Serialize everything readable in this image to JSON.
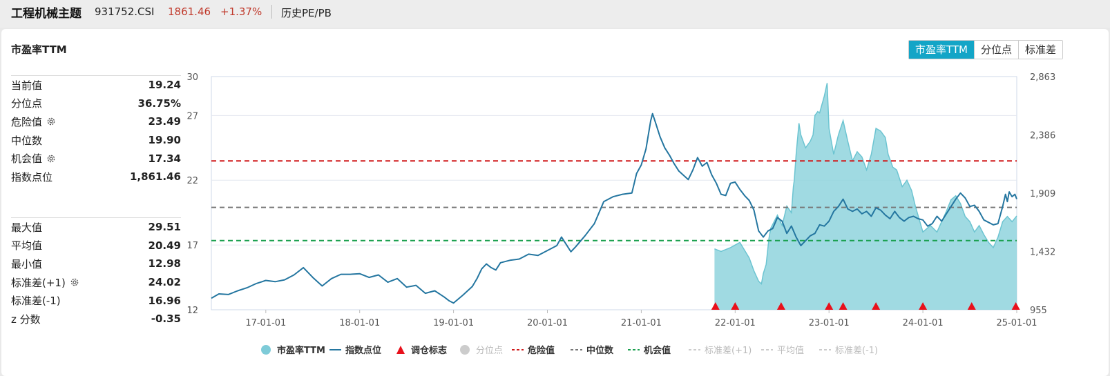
{
  "header": {
    "index_name": "工程机械主题",
    "code": "931752.CSI",
    "price": "1861.46",
    "change": "+1.37%",
    "history_link": "历史PE/PB"
  },
  "panel": {
    "title": "市盈率TTM",
    "tabs": [
      {
        "label": "市盈率TTM",
        "active": true
      },
      {
        "label": "分位点",
        "active": false
      },
      {
        "label": "标准差",
        "active": false
      }
    ]
  },
  "stats_top": [
    {
      "label": "当前值",
      "value": "19.24",
      "gear": false
    },
    {
      "label": "分位点",
      "value": "36.75%",
      "gear": false
    },
    {
      "label": "危险值",
      "value": "23.49",
      "gear": true
    },
    {
      "label": "中位数",
      "value": "19.90",
      "gear": false
    },
    {
      "label": "机会值",
      "value": "17.34",
      "gear": true
    },
    {
      "label": "指数点位",
      "value": "1,861.46",
      "gear": false
    }
  ],
  "stats_bottom": [
    {
      "label": "最大值",
      "value": "29.51",
      "gear": false
    },
    {
      "label": "平均值",
      "value": "20.49",
      "gear": false
    },
    {
      "label": "最小值",
      "value": "12.98",
      "gear": false
    },
    {
      "label": "标准差(+1)",
      "value": "24.02",
      "gear": true
    },
    {
      "label": "标准差(-1)",
      "value": "16.96",
      "gear": false
    },
    {
      "label": "z 分数",
      "value": "-0.35",
      "gear": false
    }
  ],
  "chart_data": {
    "type": "area",
    "colors": {
      "pe_fill": "#8fd3dd",
      "pe_line": "#6cc4d1",
      "index_line": "#2476a0",
      "danger": "#d0191a",
      "median": "#777777",
      "opportunity": "#1aa04f",
      "marker": "#e8101b"
    },
    "left_axis": {
      "ticks": [
        "30",
        "27",
        "22",
        "17",
        "12"
      ],
      "range": [
        12,
        30
      ]
    },
    "right_axis": {
      "ticks": [
        "2,863",
        "2,386",
        "1,909",
        "1,432",
        "955"
      ],
      "range": [
        955,
        2863
      ]
    },
    "x_ticks": [
      "17-01-01",
      "18-01-01",
      "19-01-01",
      "20-01-01",
      "21-01-01",
      "22-01-01",
      "23-01-01",
      "24-01-01",
      "25-01-01"
    ],
    "x_range": [
      2016.42,
      2025.0
    ],
    "reference_lines": {
      "danger": 23.49,
      "median": 19.9,
      "opportunity": 17.34
    },
    "rebalance_markers": [
      2021.79,
      2022.0,
      2022.49,
      2023.0,
      2023.15,
      2023.5,
      2024.0,
      2024.52,
      2024.99
    ],
    "pe_series": [
      [
        2021.78,
        16.7
      ],
      [
        2021.85,
        16.5
      ],
      [
        2021.95,
        16.8
      ],
      [
        2022.05,
        17.2
      ],
      [
        2022.1,
        16.6
      ],
      [
        2022.15,
        16.0
      ],
      [
        2022.2,
        15.0
      ],
      [
        2022.25,
        14.2
      ],
      [
        2022.28,
        14.0
      ],
      [
        2022.3,
        14.8
      ],
      [
        2022.33,
        15.5
      ],
      [
        2022.36,
        17.5
      ],
      [
        2022.38,
        18.3
      ],
      [
        2022.45,
        19.3
      ],
      [
        2022.5,
        18.5
      ],
      [
        2022.55,
        20.0
      ],
      [
        2022.6,
        19.5
      ],
      [
        2022.62,
        21.5
      ],
      [
        2022.63,
        22.0
      ],
      [
        2022.65,
        24.0
      ],
      [
        2022.68,
        26.4
      ],
      [
        2022.7,
        25.5
      ],
      [
        2022.75,
        24.5
      ],
      [
        2022.8,
        25.0
      ],
      [
        2022.83,
        25.5
      ],
      [
        2022.85,
        27.0
      ],
      [
        2022.88,
        27.3
      ],
      [
        2022.9,
        27.2
      ],
      [
        2022.95,
        28.5
      ],
      [
        2022.98,
        29.5
      ],
      [
        2023.0,
        26.0
      ],
      [
        2023.05,
        24.0
      ],
      [
        2023.1,
        25.5
      ],
      [
        2023.15,
        26.6
      ],
      [
        2023.2,
        25.0
      ],
      [
        2023.25,
        23.5
      ],
      [
        2023.3,
        24.2
      ],
      [
        2023.35,
        23.8
      ],
      [
        2023.4,
        22.8
      ],
      [
        2023.45,
        24.0
      ],
      [
        2023.5,
        26.0
      ],
      [
        2023.55,
        25.8
      ],
      [
        2023.6,
        25.3
      ],
      [
        2023.63,
        24.0
      ],
      [
        2023.68,
        23.0
      ],
      [
        2023.72,
        22.8
      ],
      [
        2023.78,
        21.5
      ],
      [
        2023.83,
        22.0
      ],
      [
        2023.88,
        21.2
      ],
      [
        2023.92,
        20.0
      ],
      [
        2023.96,
        19.0
      ],
      [
        2024.0,
        18.0
      ],
      [
        2024.08,
        18.5
      ],
      [
        2024.15,
        18.0
      ],
      [
        2024.2,
        18.8
      ],
      [
        2024.25,
        19.6
      ],
      [
        2024.3,
        20.5
      ],
      [
        2024.35,
        20.8
      ],
      [
        2024.4,
        20.2
      ],
      [
        2024.45,
        19.2
      ],
      [
        2024.5,
        18.8
      ],
      [
        2024.55,
        18.0
      ],
      [
        2024.6,
        18.5
      ],
      [
        2024.65,
        17.8
      ],
      [
        2024.7,
        17.2
      ],
      [
        2024.75,
        16.8
      ],
      [
        2024.8,
        17.6
      ],
      [
        2024.85,
        18.8
      ],
      [
        2024.9,
        19.2
      ],
      [
        2024.95,
        18.8
      ],
      [
        2025.0,
        19.24
      ]
    ],
    "index_series": [
      [
        2016.42,
        1050
      ],
      [
        2016.5,
        1085
      ],
      [
        2016.6,
        1080
      ],
      [
        2016.7,
        1110
      ],
      [
        2016.8,
        1135
      ],
      [
        2016.9,
        1170
      ],
      [
        2017.0,
        1195
      ],
      [
        2017.1,
        1185
      ],
      [
        2017.2,
        1200
      ],
      [
        2017.3,
        1240
      ],
      [
        2017.4,
        1300
      ],
      [
        2017.5,
        1220
      ],
      [
        2017.6,
        1150
      ],
      [
        2017.7,
        1210
      ],
      [
        2017.8,
        1245
      ],
      [
        2017.9,
        1245
      ],
      [
        2018.0,
        1250
      ],
      [
        2018.1,
        1220
      ],
      [
        2018.2,
        1240
      ],
      [
        2018.3,
        1180
      ],
      [
        2018.4,
        1210
      ],
      [
        2018.5,
        1140
      ],
      [
        2018.6,
        1155
      ],
      [
        2018.7,
        1090
      ],
      [
        2018.8,
        1110
      ],
      [
        2018.9,
        1060
      ],
      [
        2018.95,
        1030
      ],
      [
        2019.0,
        1010
      ],
      [
        2019.1,
        1075
      ],
      [
        2019.2,
        1145
      ],
      [
        2019.25,
        1210
      ],
      [
        2019.3,
        1290
      ],
      [
        2019.35,
        1330
      ],
      [
        2019.4,
        1300
      ],
      [
        2019.45,
        1280
      ],
      [
        2019.5,
        1340
      ],
      [
        2019.6,
        1360
      ],
      [
        2019.7,
        1370
      ],
      [
        2019.8,
        1410
      ],
      [
        2019.9,
        1400
      ],
      [
        2020.0,
        1440
      ],
      [
        2020.1,
        1480
      ],
      [
        2020.15,
        1550
      ],
      [
        2020.2,
        1490
      ],
      [
        2020.25,
        1430
      ],
      [
        2020.3,
        1470
      ],
      [
        2020.4,
        1560
      ],
      [
        2020.5,
        1660
      ],
      [
        2020.55,
        1750
      ],
      [
        2020.6,
        1840
      ],
      [
        2020.7,
        1880
      ],
      [
        2020.8,
        1900
      ],
      [
        2020.9,
        1910
      ],
      [
        2020.95,
        2070
      ],
      [
        2021.0,
        2140
      ],
      [
        2021.05,
        2270
      ],
      [
        2021.1,
        2500
      ],
      [
        2021.12,
        2560
      ],
      [
        2021.15,
        2490
      ],
      [
        2021.2,
        2370
      ],
      [
        2021.25,
        2280
      ],
      [
        2021.3,
        2220
      ],
      [
        2021.35,
        2150
      ],
      [
        2021.4,
        2090
      ],
      [
        2021.5,
        2020
      ],
      [
        2021.55,
        2100
      ],
      [
        2021.6,
        2200
      ],
      [
        2021.65,
        2130
      ],
      [
        2021.7,
        2160
      ],
      [
        2021.75,
        2060
      ],
      [
        2021.8,
        1990
      ],
      [
        2021.85,
        1900
      ],
      [
        2021.9,
        1890
      ],
      [
        2021.95,
        1990
      ],
      [
        2022.0,
        2000
      ],
      [
        2022.05,
        1940
      ],
      [
        2022.1,
        1890
      ],
      [
        2022.15,
        1850
      ],
      [
        2022.2,
        1770
      ],
      [
        2022.25,
        1600
      ],
      [
        2022.3,
        1550
      ],
      [
        2022.35,
        1600
      ],
      [
        2022.4,
        1620
      ],
      [
        2022.45,
        1710
      ],
      [
        2022.5,
        1680
      ],
      [
        2022.55,
        1580
      ],
      [
        2022.6,
        1640
      ],
      [
        2022.65,
        1550
      ],
      [
        2022.7,
        1480
      ],
      [
        2022.75,
        1520
      ],
      [
        2022.8,
        1560
      ],
      [
        2022.85,
        1580
      ],
      [
        2022.9,
        1650
      ],
      [
        2022.95,
        1640
      ],
      [
        2023.0,
        1680
      ],
      [
        2023.05,
        1760
      ],
      [
        2023.1,
        1800
      ],
      [
        2023.15,
        1860
      ],
      [
        2023.2,
        1780
      ],
      [
        2023.25,
        1760
      ],
      [
        2023.3,
        1780
      ],
      [
        2023.35,
        1740
      ],
      [
        2023.4,
        1760
      ],
      [
        2023.45,
        1720
      ],
      [
        2023.5,
        1790
      ],
      [
        2023.55,
        1770
      ],
      [
        2023.6,
        1730
      ],
      [
        2023.65,
        1700
      ],
      [
        2023.7,
        1760
      ],
      [
        2023.75,
        1710
      ],
      [
        2023.8,
        1680
      ],
      [
        2023.85,
        1710
      ],
      [
        2023.9,
        1720
      ],
      [
        2023.95,
        1700
      ],
      [
        2024.0,
        1690
      ],
      [
        2024.05,
        1640
      ],
      [
        2024.1,
        1660
      ],
      [
        2024.15,
        1720
      ],
      [
        2024.2,
        1680
      ],
      [
        2024.25,
        1740
      ],
      [
        2024.3,
        1800
      ],
      [
        2024.35,
        1860
      ],
      [
        2024.4,
        1910
      ],
      [
        2024.45,
        1870
      ],
      [
        2024.5,
        1800
      ],
      [
        2024.55,
        1810
      ],
      [
        2024.6,
        1760
      ],
      [
        2024.65,
        1690
      ],
      [
        2024.7,
        1670
      ],
      [
        2024.75,
        1650
      ],
      [
        2024.8,
        1660
      ],
      [
        2024.85,
        1800
      ],
      [
        2024.88,
        1900
      ],
      [
        2024.9,
        1840
      ],
      [
        2024.92,
        1920
      ],
      [
        2024.95,
        1880
      ],
      [
        2024.98,
        1900
      ],
      [
        2025.0,
        1861
      ]
    ]
  },
  "legend": [
    {
      "label": "市盈率TTM",
      "kind": "circle",
      "color": "#7ecbd8",
      "muted": false
    },
    {
      "label": "指数点位",
      "kind": "line",
      "color": "#2476a0",
      "muted": false
    },
    {
      "label": "调仓标志",
      "kind": "triangle",
      "color": "#e8101b",
      "muted": false
    },
    {
      "label": "分位点",
      "kind": "circle",
      "color": "#cccccc",
      "muted": true
    },
    {
      "label": "危险值",
      "kind": "dash",
      "color": "#d0191a",
      "muted": false
    },
    {
      "label": "中位数",
      "kind": "dash",
      "color": "#777777",
      "muted": false
    },
    {
      "label": "机会值",
      "kind": "dash",
      "color": "#1aa04f",
      "muted": false
    },
    {
      "label": "标准差(+1)",
      "kind": "dash",
      "color": "#cccccc",
      "muted": true
    },
    {
      "label": "平均值",
      "kind": "dash",
      "color": "#cccccc",
      "muted": true
    },
    {
      "label": "标准差(-1)",
      "kind": "dash",
      "color": "#cccccc",
      "muted": true
    }
  ]
}
